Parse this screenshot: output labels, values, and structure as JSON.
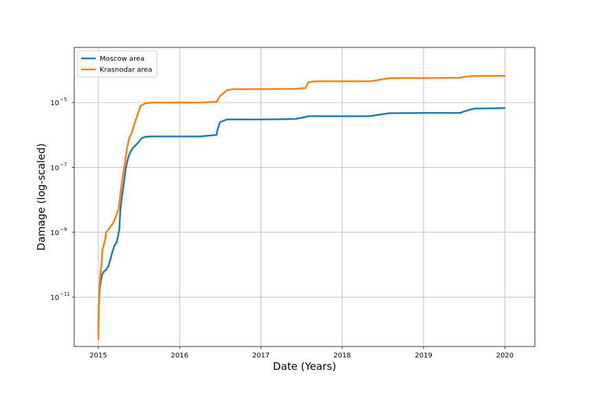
{
  "chart_data": {
    "type": "line",
    "title": "",
    "xlabel": "Date (Years)",
    "ylabel": "Damage (log-scaled)",
    "xlim": [
      "2014-09-15",
      "2020-05-15"
    ],
    "ylim": [
      3e-13,
      0.0005
    ],
    "yscale": "log",
    "x_ticks": [
      "2015",
      "2016",
      "2017",
      "2018",
      "2019",
      "2020"
    ],
    "y_ticks": [
      {
        "value": 1e-11,
        "base": "10",
        "exp": "−11"
      },
      {
        "value": 1e-09,
        "base": "10",
        "exp": "−9"
      },
      {
        "value": 1e-07,
        "base": "10",
        "exp": "−7"
      },
      {
        "value": 1e-05,
        "base": "10",
        "exp": "−5"
      }
    ],
    "grid": true,
    "legend_position": "top-left",
    "series": [
      {
        "name": "Moscow area",
        "color": "#1f77b4",
        "x": [
          "2015-01-01",
          "2015-01-03",
          "2015-01-05",
          "2015-01-08",
          "2015-01-12",
          "2015-01-18",
          "2015-01-25",
          "2015-02-05",
          "2015-02-15",
          "2015-02-25",
          "2015-03-05",
          "2015-03-15",
          "2015-03-25",
          "2015-04-05",
          "2015-04-10",
          "2015-04-15",
          "2015-04-25",
          "2015-05-05",
          "2015-05-15",
          "2015-05-25",
          "2015-06-05",
          "2015-06-20",
          "2015-07-01",
          "2015-07-15",
          "2015-08-01",
          "2015-09-01",
          "2015-10-01",
          "2016-01-01",
          "2016-04-01",
          "2016-06-15",
          "2016-06-20",
          "2016-07-01",
          "2016-08-01",
          "2016-09-01",
          "2017-01-01",
          "2017-06-01",
          "2017-07-15",
          "2017-08-01",
          "2017-09-01",
          "2018-01-01",
          "2018-05-01",
          "2018-06-15",
          "2018-08-01",
          "2019-01-01",
          "2019-06-15",
          "2019-07-01",
          "2019-08-15",
          "2019-12-31"
        ],
        "values": [
          1e-12,
          5e-12,
          1e-11,
          2e-11,
          3e-11,
          5e-11,
          6e-11,
          7e-11,
          9e-11,
          1.5e-10,
          2.5e-10,
          4e-10,
          5e-10,
          1.2e-09,
          5e-09,
          1e-08,
          3e-08,
          1e-07,
          2e-07,
          3e-07,
          4e-07,
          5e-07,
          6e-07,
          8e-07,
          8.8e-07,
          9e-07,
          9e-07,
          9e-07,
          9e-07,
          1e-06,
          1.5e-06,
          2.5e-06,
          3e-06,
          3e-06,
          3e-06,
          3.1e-06,
          3.5e-06,
          3.8e-06,
          3.8e-06,
          3.8e-06,
          3.8e-06,
          4.2e-06,
          4.7e-06,
          4.8e-06,
          4.8e-06,
          5.3e-06,
          6.5e-06,
          6.7e-06
        ]
      },
      {
        "name": "Krasnodar area",
        "color": "#ff7f0e",
        "x": [
          "2015-01-01",
          "2015-01-03",
          "2015-01-06",
          "2015-01-10",
          "2015-01-15",
          "2015-01-20",
          "2015-02-01",
          "2015-02-05",
          "2015-02-15",
          "2015-02-25",
          "2015-03-10",
          "2015-03-20",
          "2015-04-01",
          "2015-04-10",
          "2015-04-20",
          "2015-05-01",
          "2015-05-10",
          "2015-05-20",
          "2015-06-01",
          "2015-06-10",
          "2015-06-25",
          "2015-07-10",
          "2015-08-01",
          "2015-09-01",
          "2015-10-01",
          "2016-01-01",
          "2016-04-01",
          "2016-06-15",
          "2016-07-01",
          "2016-08-01",
          "2016-09-01",
          "2017-01-01",
          "2017-06-01",
          "2017-07-20",
          "2017-08-01",
          "2017-09-01",
          "2018-01-01",
          "2018-05-01",
          "2018-06-15",
          "2018-08-01",
          "2019-01-01",
          "2019-06-15",
          "2019-07-01",
          "2019-08-15",
          "2019-12-31"
        ],
        "values": [
          5e-13,
          5e-12,
          2e-11,
          5e-11,
          1e-10,
          3e-10,
          6e-10,
          1e-09,
          1.2e-09,
          1.5e-09,
          2e-09,
          3e-09,
          5e-09,
          1.5e-08,
          5e-08,
          1.5e-07,
          4e-07,
          8e-07,
          1.2e-06,
          2e-06,
          4e-06,
          8e-06,
          9.5e-06,
          1e-05,
          1e-05,
          1e-05,
          1e-05,
          1.05e-05,
          1.6e-05,
          2.4e-05,
          2.6e-05,
          2.6e-05,
          2.65e-05,
          2.8e-05,
          4.2e-05,
          4.5e-05,
          4.5e-05,
          4.5e-05,
          5e-05,
          5.7e-05,
          5.7e-05,
          5.8e-05,
          6.2e-05,
          6.6e-05,
          6.7e-05
        ]
      }
    ]
  }
}
